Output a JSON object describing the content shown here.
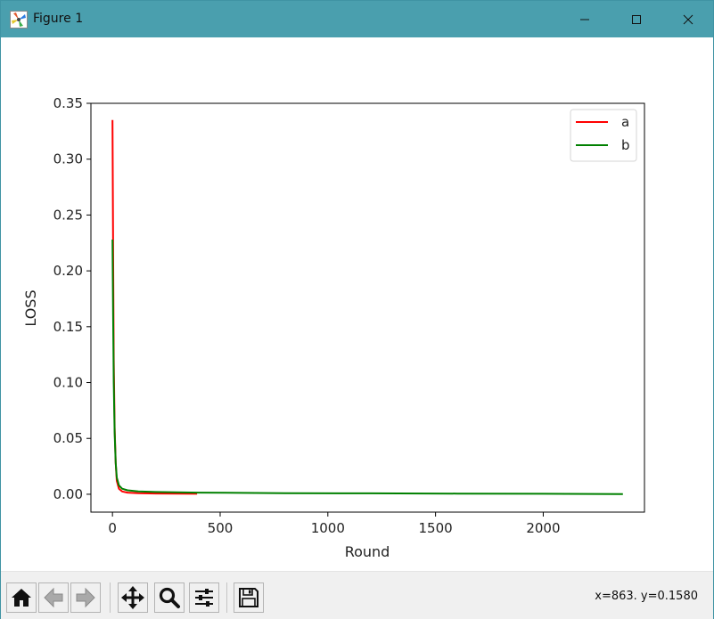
{
  "window": {
    "title": "Figure 1",
    "controls": [
      "minimize",
      "maximize",
      "close"
    ],
    "titlebar_color": "#4a9fae"
  },
  "toolbar": {
    "buttons": [
      "home-icon",
      "back-icon",
      "forward-icon",
      "pan-icon",
      "zoom-icon",
      "configure-subplots-icon",
      "save-icon"
    ],
    "coords_text": "x=863. y=0.1580"
  },
  "chart_data": {
    "type": "line",
    "title": "",
    "xlabel": "Round",
    "ylabel": "LOSS",
    "xlim": [
      -100,
      2470
    ],
    "ylim": [
      -0.016,
      0.35
    ],
    "xticks": [
      0,
      500,
      1000,
      1500,
      2000
    ],
    "xtick_labels": [
      "0",
      "500",
      "1000",
      "1500",
      "2000"
    ],
    "yticks": [
      0.0,
      0.05,
      0.1,
      0.15,
      0.2,
      0.25,
      0.3,
      0.35
    ],
    "ytick_labels": [
      "0.00",
      "0.05",
      "0.10",
      "0.15",
      "0.20",
      "0.25",
      "0.30",
      "0.35"
    ],
    "grid": false,
    "legend_position": "top-right",
    "series": [
      {
        "name": "a",
        "color": "#ff0000",
        "x": [
          0,
          3,
          6,
          10,
          15,
          20,
          30,
          45,
          70,
          120,
          200,
          300,
          393
        ],
        "y": [
          0.335,
          0.22,
          0.12,
          0.06,
          0.028,
          0.012,
          0.005,
          0.0025,
          0.0015,
          0.001,
          0.0007,
          0.0005,
          0.0004
        ]
      },
      {
        "name": "b",
        "color": "#008000",
        "x": [
          0,
          3,
          6,
          10,
          15,
          20,
          30,
          45,
          70,
          120,
          200,
          400,
          800,
          1200,
          1600,
          2000,
          2370
        ],
        "y": [
          0.228,
          0.16,
          0.1,
          0.055,
          0.028,
          0.015,
          0.008,
          0.005,
          0.0035,
          0.0025,
          0.002,
          0.0015,
          0.001,
          0.0008,
          0.0006,
          0.0004,
          0.0002
        ]
      }
    ]
  }
}
